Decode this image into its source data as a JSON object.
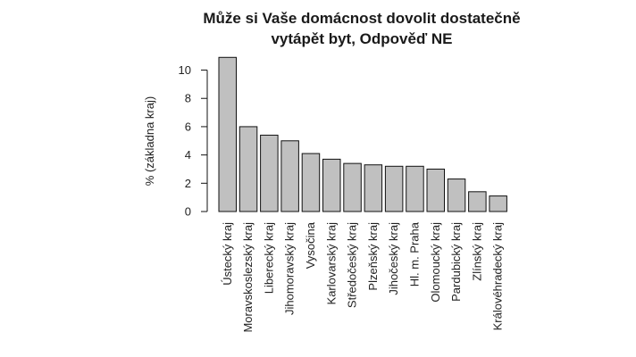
{
  "chart_data": {
    "type": "bar",
    "title_lines": [
      "Může si Vaše domácnost dovolit dostatečně",
      "vytápět byt, Odpověď NE"
    ],
    "ylabel": "% (základna kraj)",
    "xlabel": "",
    "ylim": [
      0,
      11
    ],
    "yticks": [
      0,
      2,
      4,
      6,
      8,
      10
    ],
    "categories": [
      "Ústecký kraj",
      "Moravskoslezský kraj",
      "Liberecký kraj",
      "Jihomoravský kraj",
      "Vysočina",
      "Karlovarský kraj",
      "Středočeský kraj",
      "Plzeňský kraj",
      "Jihočeský kraj",
      "Hl. m. Praha",
      "Olomoucký kraj",
      "Pardubický kraj",
      "Zlínský kraj",
      "Královéhradecký kraj"
    ],
    "values": [
      10.9,
      6.0,
      5.4,
      5.0,
      4.1,
      3.7,
      3.4,
      3.3,
      3.2,
      3.2,
      3.0,
      2.3,
      1.4,
      1.1
    ],
    "grid": false,
    "bar_color": "#c0c0c0"
  }
}
